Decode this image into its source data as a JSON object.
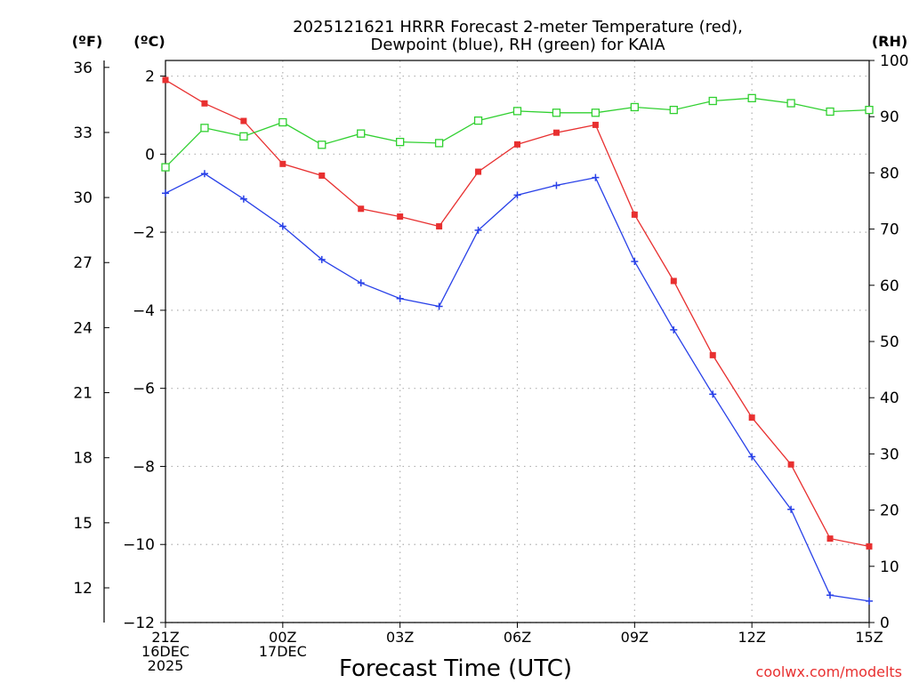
{
  "chart_data": {
    "type": "line",
    "title_line1": "2025121621 HRRR Forecast 2-meter Temperature (red),",
    "title_line2": "Dewpoint (blue), RH (green) for KAIA",
    "xlabel": "Forecast Time (UTC)",
    "unit_f": "(ºF)",
    "unit_c": "(ºC)",
    "unit_rh": "(RH)",
    "x_hours": [
      0,
      1,
      2,
      3,
      4,
      5,
      6,
      7,
      8,
      9,
      10,
      11,
      12,
      13,
      14,
      15,
      16,
      17,
      18
    ],
    "x_ticks": [
      {
        "hour": 0,
        "lines": [
          "21Z",
          "16DEC",
          "2025"
        ]
      },
      {
        "hour": 3,
        "lines": [
          "00Z",
          "17DEC"
        ]
      },
      {
        "hour": 6,
        "lines": [
          "03Z"
        ]
      },
      {
        "hour": 9,
        "lines": [
          "06Z"
        ]
      },
      {
        "hour": 12,
        "lines": [
          "09Z"
        ]
      },
      {
        "hour": 15,
        "lines": [
          "12Z"
        ]
      },
      {
        "hour": 18,
        "lines": [
          "15Z"
        ]
      }
    ],
    "ylim_c": [
      -12,
      2.4
    ],
    "yticks_c": [
      2,
      0,
      -2,
      -4,
      -6,
      -8,
      -10,
      -12
    ],
    "ylim_rh": [
      0,
      100
    ],
    "yticks_rh": [
      0,
      10,
      20,
      30,
      40,
      50,
      60,
      70,
      80,
      90,
      100
    ],
    "yticks_f": [
      12,
      15,
      18,
      21,
      24,
      27,
      30,
      33,
      36
    ],
    "series": [
      {
        "name": "Temperature",
        "color": "#e83030",
        "marker": "square-filled",
        "axis": "c",
        "values": [
          1.9,
          1.3,
          0.85,
          -0.25,
          -0.55,
          -1.4,
          -1.6,
          -1.85,
          -0.45,
          0.25,
          0.55,
          0.75,
          -1.55,
          -3.25,
          -5.15,
          -6.75,
          -7.95,
          -9.85,
          -10.05
        ]
      },
      {
        "name": "Dewpoint",
        "color": "#2840e8",
        "marker": "plus",
        "axis": "c",
        "values": [
          -1.0,
          -0.5,
          -1.15,
          -1.85,
          -2.7,
          -3.3,
          -3.7,
          -3.9,
          -1.95,
          -1.05,
          -0.8,
          -0.6,
          -2.75,
          -4.5,
          -6.15,
          -7.75,
          -9.1,
          -11.3,
          -11.45
        ]
      },
      {
        "name": "RH",
        "color": "#30d030",
        "marker": "square-open",
        "axis": "rh",
        "values": [
          81,
          88,
          86.5,
          89,
          85,
          87,
          85.5,
          85.3,
          89.3,
          91,
          90.7,
          90.7,
          91.7,
          91.2,
          92.8,
          93.3,
          92.4,
          90.9,
          91.2
        ]
      }
    ],
    "grid": true,
    "credit": "coolwx.com/modelts"
  }
}
